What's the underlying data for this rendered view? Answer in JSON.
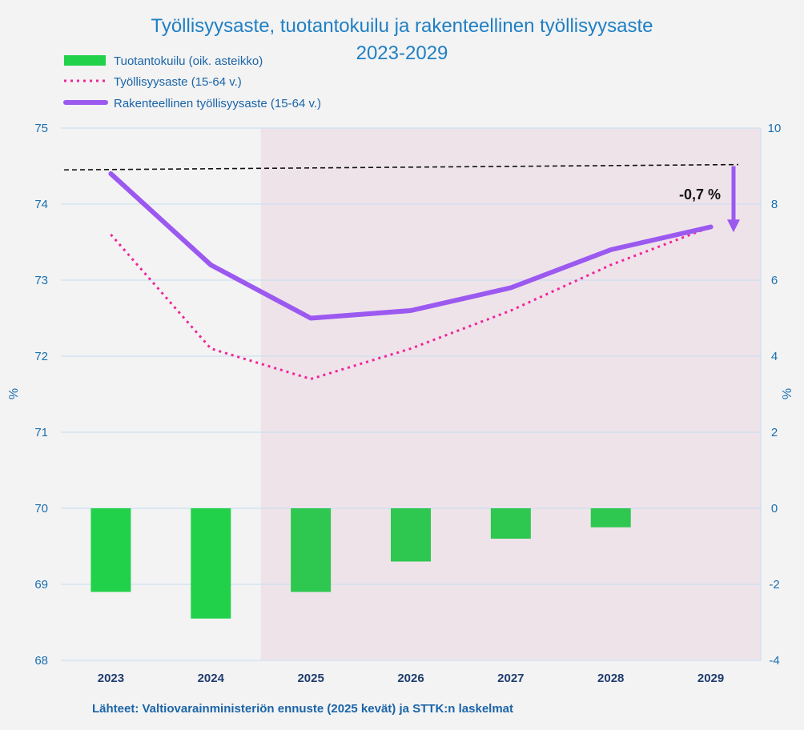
{
  "chart_data": {
    "type": "bar+line",
    "title_line1": "Työllisyysaste, tuotantokuilu ja rakenteellinen työllisyysaste",
    "title_line2": "2023-2029",
    "categories": [
      "2023",
      "2024",
      "2025",
      "2026",
      "2027",
      "2028",
      "2029"
    ],
    "ylabel_left": "%",
    "ylabel_right": "%",
    "ylim_left": [
      68,
      75
    ],
    "ylim_right": [
      -4,
      10
    ],
    "yticks_left": [
      "68",
      "69",
      "70",
      "71",
      "72",
      "73",
      "74",
      "75"
    ],
    "yticks_right": [
      "-4",
      "-2",
      "0",
      "2",
      "4",
      "6",
      "8",
      "10"
    ],
    "grid": true,
    "shaded_forecast_from": "2025",
    "series": [
      {
        "name": "Tuotantokuilu (oik. asteikko)",
        "kind": "bar",
        "axis": "right",
        "color": "#22d14a",
        "values": [
          -2.2,
          -2.9,
          -2.2,
          -1.4,
          -0.8,
          -0.5,
          null
        ]
      },
      {
        "name": "Työllisyysaste (15-64 v.)",
        "kind": "line-dotted",
        "axis": "left",
        "color": "#f0259a",
        "values": [
          73.6,
          72.1,
          71.7,
          72.1,
          72.6,
          73.2,
          73.7
        ]
      },
      {
        "name": "Rakenteellinen työllisyysaste (15-64 v.)",
        "kind": "line",
        "axis": "left",
        "color": "#9b59f0",
        "values": [
          74.4,
          73.2,
          72.5,
          72.6,
          72.9,
          73.4,
          73.7
        ]
      }
    ],
    "reference_line": {
      "style": "dashed",
      "color": "#111111",
      "from": 74.45,
      "to": 74.52
    },
    "annotation": {
      "text": "-0,7 %",
      "arrow_color": "#9b59f0"
    },
    "source_text": "Lähteet: Valtiovarainministeriön ennuste (2025 kevät) ja STTK:n laskelmat"
  }
}
